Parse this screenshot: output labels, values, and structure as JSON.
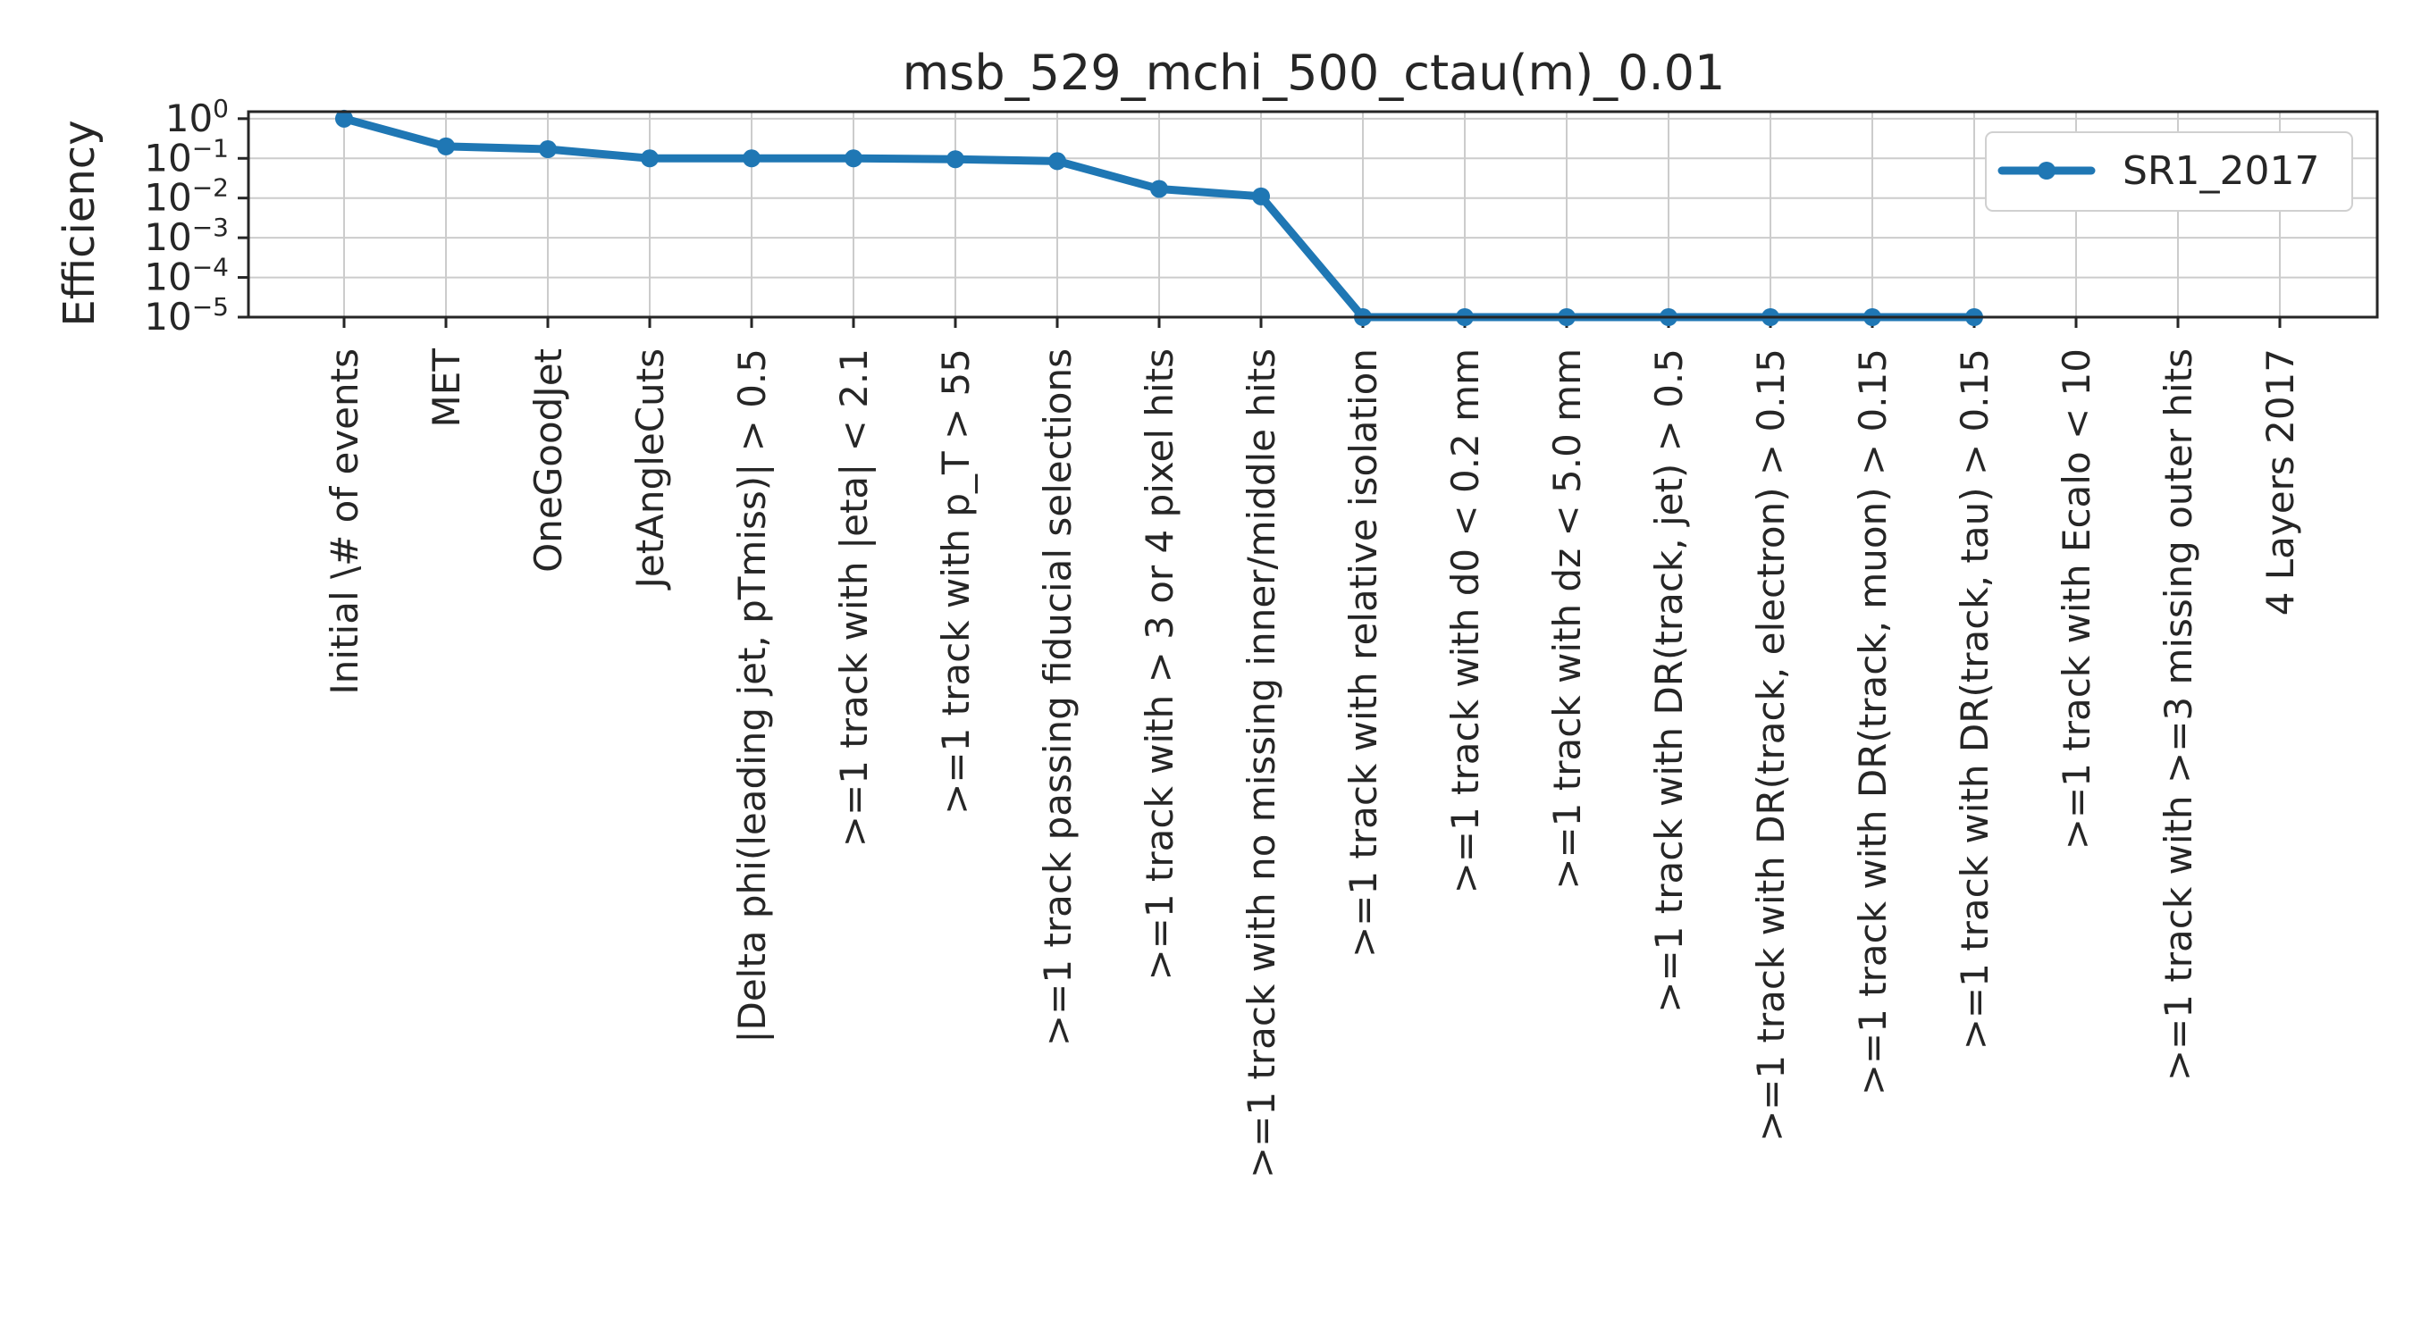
{
  "chart_data": {
    "type": "line",
    "title": "msb_529_mchi_500_ctau(m)_0.01",
    "ylabel": "Efficiency",
    "xlabel": "",
    "yscale": "log",
    "ylim": [
      1e-05,
      1.5
    ],
    "grid": true,
    "legend": {
      "placement": "top-right",
      "entries": [
        "SR1_2017"
      ]
    },
    "y_tick_labels": [
      {
        "value": 1,
        "base": "10",
        "exp": "0"
      },
      {
        "value": 0.1,
        "base": "10",
        "exp": "−1"
      },
      {
        "value": 0.01,
        "base": "10",
        "exp": "−2"
      },
      {
        "value": 0.001,
        "base": "10",
        "exp": "−3"
      },
      {
        "value": 0.0001,
        "base": "10",
        "exp": "−4"
      },
      {
        "value": 1e-05,
        "base": "10",
        "exp": "−5"
      }
    ],
    "categories": [
      "Initial \\# of events",
      "MET",
      "OneGoodJet",
      "JetAngleCuts",
      "|Delta phi(leading jet, pTmiss)| > 0.5",
      ">=1 track with |eta| < 2.1",
      ">=1 track with p_T > 55",
      ">=1 track passing fiducial selections",
      ">=1 track with > 3 or 4 pixel hits",
      ">=1 track with no missing inner/middle hits",
      ">=1 track with relative isolation",
      ">=1 track with d0 < 0.2 mm",
      ">=1 track with dz < 5.0 mm",
      ">=1 track with DR(track, jet) > 0.5",
      ">=1 track with DR(track, electron) > 0.15",
      ">=1 track with DR(track, muon) > 0.15",
      ">=1 track with DR(track, tau) > 0.15",
      ">=1 track with Ecalo < 10",
      ">=1 track with >=3 missing outer hits",
      "4 Layers 2017"
    ],
    "series": [
      {
        "name": "SR1_2017",
        "color": "#1f77b4",
        "values": [
          1.0,
          0.2,
          0.17,
          0.1,
          0.1,
          0.1,
          0.095,
          0.085,
          0.017,
          0.011,
          1e-05,
          1e-05,
          1e-05,
          1e-05,
          1e-05,
          1e-05,
          1e-05,
          null,
          null,
          null
        ]
      }
    ]
  }
}
